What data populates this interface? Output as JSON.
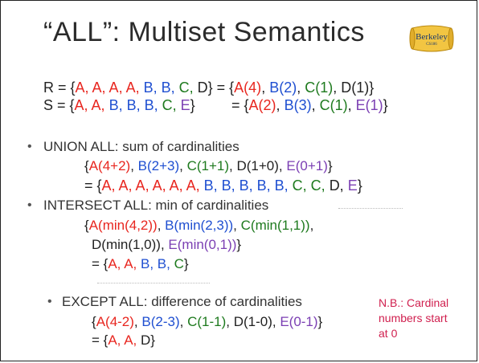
{
  "title": "“ALL”: Multiset Semantics",
  "logo": {
    "text": "Berkeley",
    "subtext": "CS186"
  },
  "definitions": {
    "r_line": {
      "prefix": "R = {",
      "items": [
        {
          "text": "A, A, A, A, ",
          "color": "red"
        },
        {
          "text": "B, B, ",
          "color": "blue"
        },
        {
          "text": "C, ",
          "color": "green"
        },
        {
          "text": "D",
          "color": "black"
        }
      ],
      "mid": "} = {",
      "counts": [
        {
          "text": "A(4)",
          "color": "red"
        },
        {
          "text": ", ",
          "color": "black"
        },
        {
          "text": "B(2)",
          "color": "blue"
        },
        {
          "text": ", ",
          "color": "black"
        },
        {
          "text": "C(1)",
          "color": "green"
        },
        {
          "text": ", ",
          "color": "black"
        },
        {
          "text": "D(1)",
          "color": "black"
        }
      ],
      "suffix": "}"
    },
    "s_line": {
      "prefix": "S = {",
      "items": [
        {
          "text": "A, A, ",
          "color": "red"
        },
        {
          "text": "B, B, B, ",
          "color": "blue"
        },
        {
          "text": "C, ",
          "color": "green"
        },
        {
          "text": "E",
          "color": "purple"
        }
      ],
      "mid": "}",
      "eq": "= {",
      "counts": [
        {
          "text": "A(2)",
          "color": "red"
        },
        {
          "text": ", ",
          "color": "black"
        },
        {
          "text": "B(3)",
          "color": "blue"
        },
        {
          "text": ", ",
          "color": "black"
        },
        {
          "text": "C(1)",
          "color": "green"
        },
        {
          "text": ", ",
          "color": "black"
        },
        {
          "text": "E(1)",
          "color": "purple"
        }
      ],
      "suffix": "}"
    }
  },
  "sections": {
    "union": {
      "bullet": "•",
      "heading": "UNION ALL: sum of cardinalities",
      "expr": [
        "{",
        "A(4+2)",
        ", ",
        "B(2+3)",
        ", ",
        "C(1+1)",
        ", ",
        "D(1+0)",
        ", ",
        "E(0+1)",
        "}"
      ],
      "result": [
        "= {",
        "A, A, A, A, A, A, ",
        "B, B, B, B, B, ",
        "C, C, ",
        "D, ",
        "E",
        "}"
      ]
    },
    "intersect": {
      "bullet": "•",
      "heading": "INTERSECT ALL: min of cardinalities",
      "expr1": [
        "{",
        "A(min(4,2))",
        ", ",
        "B(min(2,3))",
        ", ",
        "C(min(1,1))",
        ","
      ],
      "expr2": [
        "D(min(1,0))",
        ", ",
        "E(min(0,1))",
        "}"
      ],
      "result": [
        "= {",
        "A, A, ",
        "B, B, ",
        "C",
        "}"
      ]
    },
    "except": {
      "bullet": "•",
      "heading": "EXCEPT ALL: difference of cardinalities",
      "expr": [
        "{",
        "A(4-2)",
        ", ",
        "B(2-3)",
        ", ",
        "C(1-1)",
        ", ",
        "D(1-0)",
        ", ",
        "E(0-1)",
        "}"
      ],
      "result": [
        "= {",
        "A, A, ",
        "D",
        "}"
      ]
    }
  },
  "note": "N.B.: Cardinal\nnumbers start\nat 0",
  "colors": {
    "red": "#e8261f",
    "blue": "#1f4fd1",
    "green": "#1e7a1e",
    "purple": "#7b3fb3",
    "note": "#d0204f",
    "text": "#333333"
  }
}
